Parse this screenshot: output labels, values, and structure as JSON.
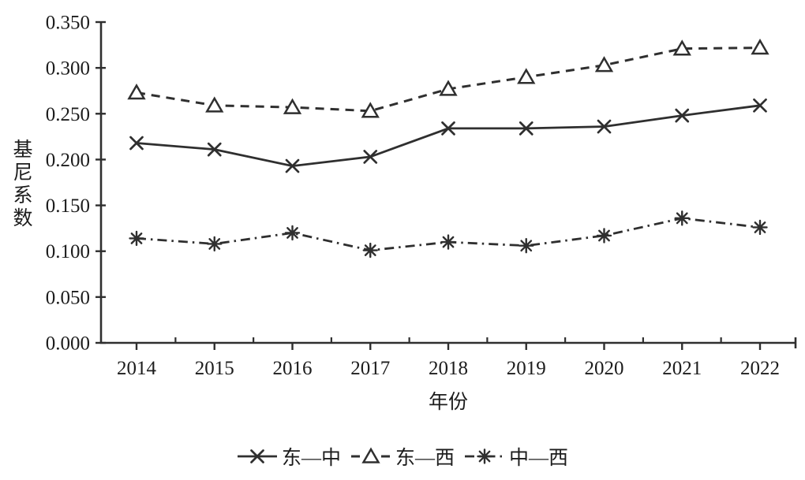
{
  "chart_data": {
    "type": "line",
    "title": "",
    "xlabel": "年份",
    "ylabel": "基尼系数",
    "x": [
      "2014",
      "2015",
      "2016",
      "2017",
      "2018",
      "2019",
      "2020",
      "2021",
      "2022"
    ],
    "ylim": [
      0.0,
      0.35
    ],
    "ytick_step": 0.05,
    "ytick_labels": [
      "0.000",
      "0.050",
      "0.100",
      "0.150",
      "0.200",
      "0.250",
      "0.300",
      "0.350"
    ],
    "grid": false,
    "legend_position": "bottom",
    "series": [
      {
        "name": "东—中",
        "marker": "x",
        "line": "solid",
        "values": [
          0.218,
          0.211,
          0.193,
          0.203,
          0.234,
          0.234,
          0.236,
          0.248,
          0.259
        ]
      },
      {
        "name": "东—西",
        "marker": "triangle",
        "line": "dashed",
        "values": [
          0.273,
          0.259,
          0.257,
          0.253,
          0.277,
          0.29,
          0.303,
          0.321,
          0.322
        ]
      },
      {
        "name": "中—西",
        "marker": "asterisk",
        "line": "dashdot",
        "values": [
          0.114,
          0.108,
          0.12,
          0.101,
          0.11,
          0.106,
          0.117,
          0.136,
          0.126
        ]
      }
    ]
  },
  "colors": {
    "line": "#2f2f2f",
    "text": "#1c1c1c",
    "background": "#ffffff"
  }
}
